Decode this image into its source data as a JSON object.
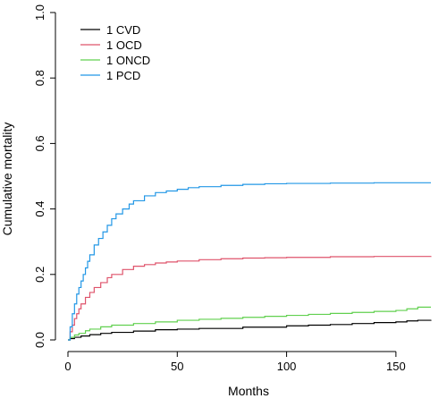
{
  "chart_data": {
    "type": "line",
    "step": true,
    "xlabel": "Months",
    "ylabel": "Cumulative mortality",
    "xlim": [
      0,
      166
    ],
    "ylim": [
      0,
      1
    ],
    "x_ticks": [
      0,
      50,
      100,
      150
    ],
    "x_tick_labels": [
      "0",
      "50",
      "100",
      "150"
    ],
    "y_ticks": [
      0,
      0.2,
      0.4,
      0.6,
      0.8,
      1
    ],
    "y_tick_labels": [
      "0.0",
      "0.2",
      "0.4",
      "0.6",
      "0.8",
      "1.0"
    ],
    "legend_position": "top-left",
    "grid": false,
    "series": [
      {
        "name": "1 CVD",
        "color": "#000000",
        "x": [
          0,
          1,
          3,
          6,
          10,
          15,
          20,
          30,
          40,
          50,
          60,
          80,
          100,
          110,
          120,
          130,
          140,
          150,
          155,
          160,
          166
        ],
        "y": [
          0,
          0.004,
          0.008,
          0.012,
          0.016,
          0.02,
          0.023,
          0.027,
          0.031,
          0.033,
          0.035,
          0.039,
          0.043,
          0.045,
          0.047,
          0.05,
          0.053,
          0.055,
          0.058,
          0.06,
          0.061
        ]
      },
      {
        "name": "1 OCD",
        "color": "#DF536B",
        "x": [
          0,
          1,
          2,
          3,
          4,
          5,
          6,
          8,
          10,
          12,
          15,
          18,
          20,
          25,
          30,
          35,
          40,
          45,
          50,
          60,
          70,
          80,
          90,
          100,
          120,
          140,
          166
        ],
        "y": [
          0,
          0.025,
          0.045,
          0.065,
          0.08,
          0.095,
          0.11,
          0.13,
          0.145,
          0.16,
          0.175,
          0.19,
          0.2,
          0.215,
          0.225,
          0.23,
          0.235,
          0.238,
          0.241,
          0.245,
          0.248,
          0.25,
          0.251,
          0.252,
          0.254,
          0.255,
          0.256
        ]
      },
      {
        "name": "1 ONCD",
        "color": "#61D04F",
        "x": [
          0,
          1,
          3,
          5,
          8,
          10,
          15,
          20,
          30,
          40,
          50,
          60,
          70,
          80,
          90,
          100,
          110,
          120,
          130,
          140,
          150,
          155,
          160,
          166
        ],
        "y": [
          0,
          0.008,
          0.015,
          0.02,
          0.028,
          0.033,
          0.04,
          0.045,
          0.05,
          0.055,
          0.06,
          0.063,
          0.066,
          0.069,
          0.072,
          0.075,
          0.078,
          0.081,
          0.084,
          0.087,
          0.09,
          0.095,
          0.1,
          0.1
        ]
      },
      {
        "name": "1 PCD",
        "color": "#2297E6",
        "x": [
          0,
          1,
          2,
          3,
          4,
          5,
          6,
          7,
          8,
          9,
          10,
          12,
          14,
          16,
          18,
          20,
          22,
          25,
          28,
          30,
          35,
          40,
          45,
          50,
          55,
          60,
          70,
          80,
          90,
          100,
          120,
          140,
          166
        ],
        "y": [
          0,
          0.04,
          0.08,
          0.11,
          0.14,
          0.16,
          0.18,
          0.2,
          0.22,
          0.24,
          0.26,
          0.29,
          0.31,
          0.33,
          0.35,
          0.37,
          0.385,
          0.4,
          0.415,
          0.425,
          0.44,
          0.45,
          0.455,
          0.46,
          0.465,
          0.468,
          0.472,
          0.475,
          0.477,
          0.478,
          0.479,
          0.48,
          0.48
        ]
      }
    ]
  }
}
